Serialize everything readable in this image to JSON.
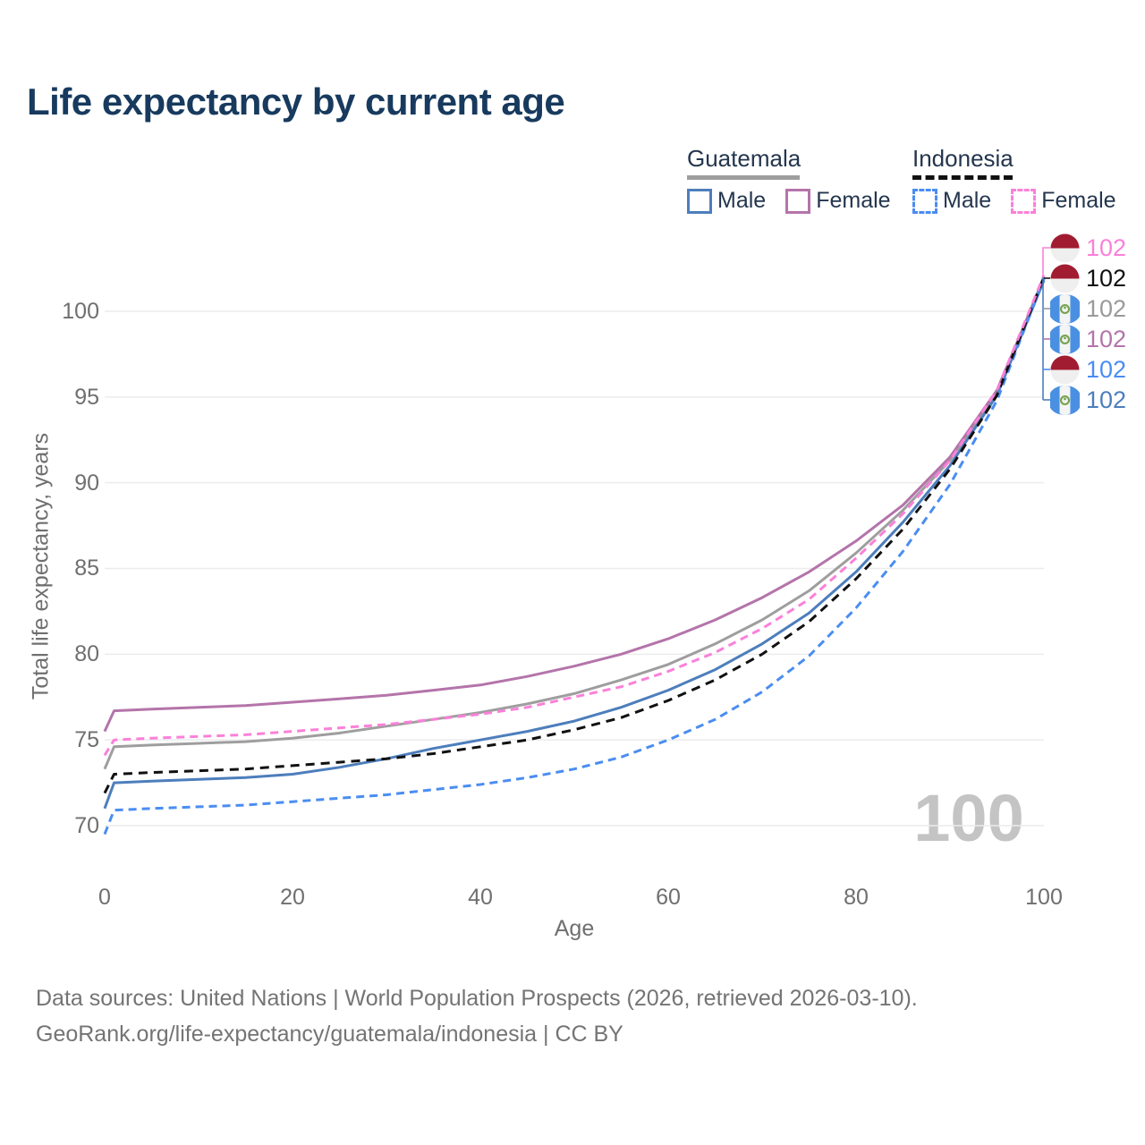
{
  "title": "Life expectancy by current age",
  "legend": {
    "groups": [
      {
        "name": "Guatemala",
        "underline_style": "solid",
        "underline_color": "#9e9e9e",
        "items": [
          {
            "label": "Male",
            "color": "#4d7ebc",
            "dashed": false
          },
          {
            "label": "Female",
            "color": "#b474aa",
            "dashed": false
          }
        ]
      },
      {
        "name": "Indonesia",
        "underline_style": "dashed",
        "underline_color": "#111111",
        "items": [
          {
            "label": "Male",
            "color": "#4a8df2",
            "dashed": true
          },
          {
            "label": "Female",
            "color": "#fb80d9",
            "dashed": true
          }
        ]
      }
    ]
  },
  "chart_data": {
    "type": "line",
    "title": "Life expectancy by current age",
    "xlabel": "Age",
    "ylabel": "Total life expectancy, years",
    "xlim": [
      0,
      100
    ],
    "ylim": [
      68.5,
      103
    ],
    "x_ticks": [
      0,
      20,
      40,
      60,
      80,
      100
    ],
    "y_ticks": [
      70,
      75,
      80,
      85,
      90,
      95,
      100
    ],
    "grid": "horizontal-only",
    "legend_position": "top-right",
    "x": [
      0,
      1,
      5,
      10,
      15,
      20,
      25,
      30,
      35,
      40,
      45,
      50,
      55,
      60,
      65,
      70,
      75,
      80,
      85,
      90,
      95,
      100
    ],
    "series": [
      {
        "name": "Guatemala All",
        "country": "Guatemala",
        "sex": "All",
        "color": "#9e9e9e",
        "dash": null,
        "values": [
          73.3,
          74.6,
          74.7,
          74.8,
          74.9,
          75.1,
          75.4,
          75.8,
          76.2,
          76.6,
          77.1,
          77.7,
          78.5,
          79.4,
          80.6,
          82.0,
          83.7,
          85.9,
          88.4,
          91.3,
          95.3,
          102.0
        ]
      },
      {
        "name": "Guatemala Female",
        "country": "Guatemala",
        "sex": "Female",
        "color": "#b474aa",
        "dash": null,
        "values": [
          75.5,
          76.7,
          76.8,
          76.9,
          77.0,
          77.2,
          77.4,
          77.6,
          77.9,
          78.2,
          78.7,
          79.3,
          80.0,
          80.9,
          82.0,
          83.3,
          84.8,
          86.6,
          88.7,
          91.5,
          95.4,
          101.9
        ]
      },
      {
        "name": "Guatemala Male",
        "country": "Guatemala",
        "sex": "Male",
        "color": "#4d7ebc",
        "dash": null,
        "values": [
          71.0,
          72.5,
          72.6,
          72.7,
          72.8,
          73.0,
          73.4,
          73.9,
          74.5,
          75.0,
          75.5,
          76.1,
          76.9,
          77.9,
          79.1,
          80.6,
          82.4,
          84.8,
          87.7,
          91.0,
          95.1,
          101.8
        ]
      },
      {
        "name": "Indonesia Male",
        "country": "Indonesia",
        "sex": "Male",
        "color": "#4a8df2",
        "dash": [
          9,
          6
        ],
        "values": [
          69.5,
          70.9,
          71.0,
          71.1,
          71.2,
          71.4,
          71.6,
          71.8,
          72.1,
          72.4,
          72.8,
          73.3,
          74.0,
          75.0,
          76.2,
          77.8,
          79.9,
          82.7,
          86.0,
          89.9,
          94.8,
          101.9
        ]
      },
      {
        "name": "Indonesia All",
        "country": "Indonesia",
        "sex": "All",
        "color": "#111111",
        "dash": [
          10,
          7
        ],
        "values": [
          71.9,
          73.0,
          73.1,
          73.2,
          73.3,
          73.5,
          73.7,
          73.9,
          74.2,
          74.6,
          75.0,
          75.6,
          76.3,
          77.3,
          78.5,
          80.0,
          81.9,
          84.4,
          87.3,
          90.8,
          95.1,
          102.0
        ]
      },
      {
        "name": "Indonesia Female",
        "country": "Indonesia",
        "sex": "Female",
        "color": "#fb80d9",
        "dash": [
          9,
          6
        ],
        "values": [
          74.1,
          75.0,
          75.1,
          75.2,
          75.3,
          75.5,
          75.7,
          75.9,
          76.2,
          76.5,
          76.9,
          77.5,
          78.1,
          79.0,
          80.1,
          81.5,
          83.2,
          85.6,
          88.2,
          91.3,
          95.4,
          102.1
        ]
      }
    ],
    "end_labels": [
      {
        "value": "102",
        "country": "Indonesia",
        "series": "Indonesia Female",
        "color": "#fb80d9"
      },
      {
        "value": "102",
        "country": "Indonesia",
        "series": "Indonesia All",
        "color": "#111111"
      },
      {
        "value": "102",
        "country": "Guatemala",
        "series": "Guatemala All",
        "color": "#9a9a9a"
      },
      {
        "value": "102",
        "country": "Guatemala",
        "series": "Guatemala Female",
        "color": "#b474aa"
      },
      {
        "value": "102",
        "country": "Indonesia",
        "series": "Indonesia Male",
        "color": "#4a8df2"
      },
      {
        "value": "102",
        "country": "Guatemala",
        "series": "Guatemala Male",
        "color": "#4d7ebc"
      }
    ],
    "watermark": "100",
    "flag_colors": {
      "indonesia_red": "#a21c31",
      "indonesia_white": "#efefef",
      "guatemala_blue": "#4a90e2",
      "guatemala_white": "#f4f4f4",
      "guatemala_emblem_green": "#76a34f"
    }
  },
  "axis": {
    "xlabel": "Age",
    "ylabel": "Total life expectancy, years"
  },
  "footer": {
    "line1": "Data sources: United Nations | World Population Prospects (2026, retrieved 2026-03-10).",
    "line2": "GeoRank.org/life-expectancy/guatemala/indonesia | CC BY"
  }
}
